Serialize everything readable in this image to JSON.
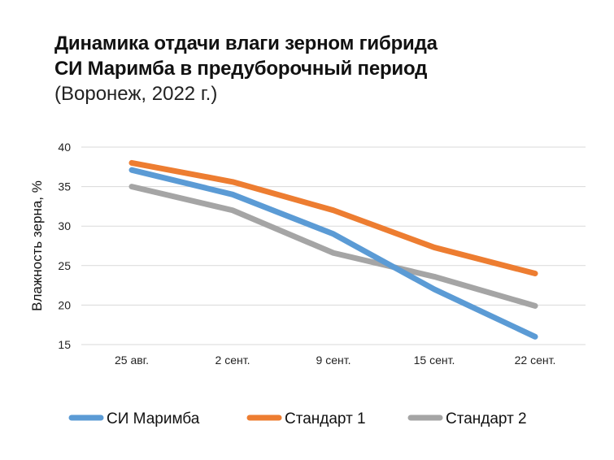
{
  "chart_data": {
    "type": "line",
    "title_line1": "Динамика отдачи влаги зерном гибрида",
    "title_line2": "СИ Маримба в предуборочный период",
    "subtitle": "(Воронеж, 2022 г.)",
    "xlabel": "",
    "ylabel": "Влажность зерна, %",
    "categories": [
      "25 авг.",
      "2 сент.",
      "9 сент.",
      "15 сент.",
      "22 сент."
    ],
    "ylim": [
      15,
      40
    ],
    "yticks": [
      15,
      20,
      25,
      30,
      35,
      40
    ],
    "grid": true,
    "legend_position": "bottom",
    "series": [
      {
        "name": "СИ Маримба",
        "color": "#5B9BD5",
        "values": [
          37.1,
          34,
          29,
          22,
          16
        ]
      },
      {
        "name": "Стандарт 1",
        "color": "#ED7D31",
        "values": [
          38,
          35.6,
          32,
          27.3,
          24
        ]
      },
      {
        "name": "Стандарт 2",
        "color": "#A5A5A5",
        "values": [
          35,
          32,
          26.6,
          23.6,
          19.9
        ]
      }
    ]
  }
}
